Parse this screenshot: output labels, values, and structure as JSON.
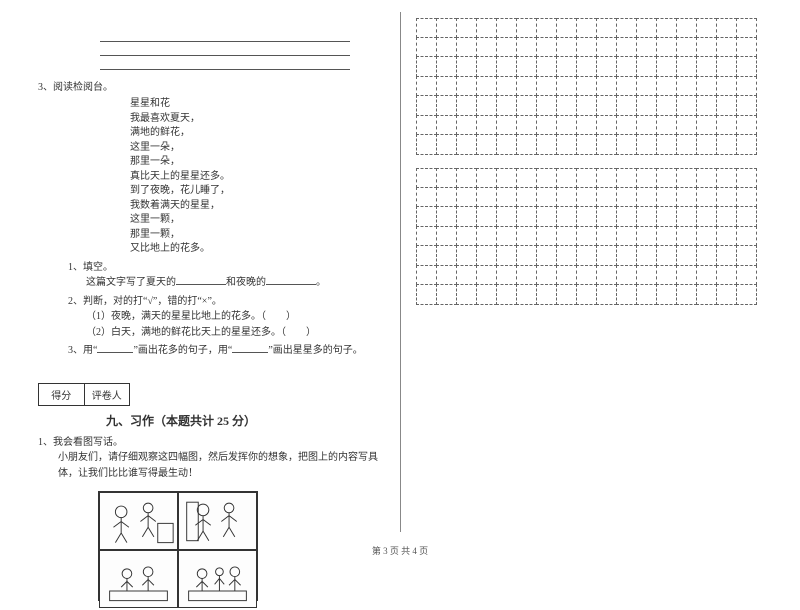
{
  "question3": {
    "head": "3、阅读检阅台。",
    "poem_title": "星星和花",
    "poem_lines": [
      "我最喜欢夏天，",
      "满地的鲜花，",
      "这里一朵，",
      "那里一朵，",
      "真比天上的星星还多。",
      "到了夜晚，花儿睡了，",
      "我数着满天的星星，",
      "这里一颗，",
      "那里一颗，",
      "又比地上的花多。"
    ],
    "sub1_head": "1、填空。",
    "sub1_text_a": "这篇文字写了夏天的",
    "sub1_text_b": "和夜晚的",
    "sub1_text_c": "。",
    "sub2_head": "2、判断，对的打“√”，错的打“×”。",
    "sub2_1": "（1）夜晚，满天的星星比地上的花多。（　　）",
    "sub2_2": "（2）白天，满地的鲜花比天上的星星还多。（　　）",
    "sub3_head": "3、用“",
    "sub3_mid": "”画出花多的句子，用“",
    "sub3_end": "”画出星星多的句子。"
  },
  "score": {
    "left": "得分",
    "right": "评卷人"
  },
  "section9": {
    "title": "九、习作（本题共计 25 分）",
    "q1_head": "1、我会看图写话。",
    "q1_body": "小朋友们，请仔细观察这四幅图，然后发挥你的想象，把图上的内容写具体，让我们比比谁写得最生动！"
  },
  "grid": {
    "cols": 17,
    "rows": 7,
    "blocks": 2
  },
  "footer": {
    "a": "第 3 页",
    "b": " 共 4 页"
  },
  "colors": {
    "text": "#333333",
    "line": "#555555",
    "divider": "#888888",
    "bg": "#ffffff"
  }
}
